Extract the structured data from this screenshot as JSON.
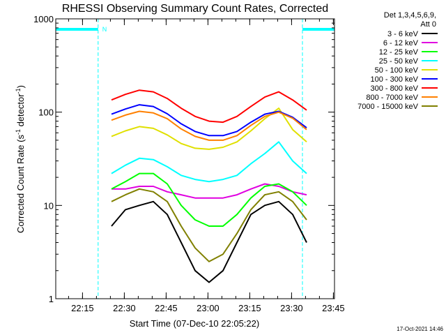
{
  "chart_data": {
    "type": "line",
    "title": "RHESSI Observing Summary Count Rates, Corrected",
    "xlabel": "Start Time (07-Dec-10 22:05:22)",
    "ylabel_main": "Corrected Count Rate (s",
    "ylabel_sup1": "-1",
    "ylabel_mid": " detector",
    "ylabel_sup2": "-1",
    "ylabel_end": ")",
    "yscale": "log",
    "ylim": [
      1,
      1000
    ],
    "y_ticks": [
      {
        "value": 1,
        "label": "1"
      },
      {
        "value": 10,
        "label": "10"
      },
      {
        "value": 100,
        "label": "100"
      },
      {
        "value": 1000,
        "label": "1000"
      }
    ],
    "xlim_minutes": [
      0,
      100
    ],
    "x_ticks": [
      {
        "label": "22:15",
        "minutes": 9.6
      },
      {
        "label": "22:30",
        "minutes": 24.6
      },
      {
        "label": "22:45",
        "minutes": 39.6
      },
      {
        "label": "23:00",
        "minutes": 54.6
      },
      {
        "label": "23:15",
        "minutes": 69.6
      },
      {
        "label": "23:30",
        "minutes": 84.6
      },
      {
        "label": "23:45",
        "minutes": 99.6
      }
    ],
    "legend_header": [
      "Det 1,3,4,5,6,9,",
      "Att 0"
    ],
    "series": [
      {
        "name": "3 - 6 keV",
        "color": "#000000",
        "x": [
          0,
          5,
          10,
          15,
          20,
          25,
          30,
          35,
          40,
          45,
          50,
          55,
          60,
          65,
          70,
          75,
          80,
          85,
          90,
          95,
          100
        ],
        "y": [
          null,
          null,
          null,
          null,
          6,
          9,
          10,
          11,
          8,
          4,
          2,
          1.5,
          2,
          4,
          8,
          10,
          11,
          8,
          4,
          null,
          null
        ]
      },
      {
        "name": "6 - 12 keV",
        "color": "#e000e0",
        "x": [
          0,
          5,
          10,
          15,
          20,
          25,
          30,
          35,
          40,
          45,
          50,
          55,
          60,
          65,
          70,
          75,
          80,
          85,
          90,
          95,
          100
        ],
        "y": [
          null,
          null,
          null,
          null,
          15,
          15,
          16,
          16,
          14,
          13,
          12,
          12,
          12,
          13,
          15,
          17,
          16,
          14,
          13,
          null,
          null
        ]
      },
      {
        "name": "12 - 25 keV",
        "color": "#00ff00",
        "x": [
          0,
          5,
          10,
          15,
          20,
          25,
          30,
          35,
          40,
          45,
          50,
          55,
          60,
          65,
          70,
          75,
          80,
          85,
          90,
          95,
          100
        ],
        "y": [
          null,
          null,
          null,
          null,
          15,
          18,
          22,
          22,
          17,
          10,
          7,
          6,
          6,
          8,
          12,
          16,
          17,
          14,
          10,
          null,
          null
        ]
      },
      {
        "name": "25 - 50 keV",
        "color": "#00ffff",
        "x": [
          0,
          5,
          10,
          15,
          20,
          25,
          30,
          35,
          40,
          45,
          50,
          55,
          60,
          65,
          70,
          75,
          80,
          85,
          90,
          95,
          100
        ],
        "y": [
          null,
          null,
          null,
          null,
          22,
          27,
          32,
          31,
          26,
          21,
          19,
          18,
          19,
          21,
          28,
          36,
          48,
          30,
          22,
          null,
          null
        ]
      },
      {
        "name": "50 - 100 keV",
        "color": "#e0e000",
        "x": [
          0,
          5,
          10,
          15,
          20,
          25,
          30,
          35,
          40,
          45,
          50,
          55,
          60,
          65,
          70,
          75,
          80,
          85,
          90,
          95,
          100
        ],
        "y": [
          null,
          null,
          null,
          null,
          55,
          63,
          70,
          67,
          57,
          46,
          41,
          40,
          42,
          48,
          63,
          85,
          110,
          65,
          48,
          null,
          null
        ]
      },
      {
        "name": "100 - 300 keV",
        "color": "#0000ff",
        "x": [
          0,
          5,
          10,
          15,
          20,
          25,
          30,
          35,
          40,
          45,
          50,
          55,
          60,
          65,
          70,
          75,
          80,
          85,
          90,
          95,
          100
        ],
        "y": [
          null,
          null,
          null,
          null,
          95,
          108,
          120,
          115,
          96,
          75,
          62,
          56,
          56,
          62,
          78,
          95,
          102,
          88,
          68,
          null,
          null
        ]
      },
      {
        "name": "300 - 800 keV",
        "color": "#ff0000",
        "x": [
          0,
          5,
          10,
          15,
          20,
          25,
          30,
          35,
          40,
          45,
          50,
          55,
          60,
          65,
          70,
          75,
          80,
          85,
          90,
          95,
          100
        ],
        "y": [
          null,
          null,
          null,
          null,
          135,
          155,
          172,
          165,
          140,
          110,
          90,
          80,
          78,
          90,
          115,
          145,
          165,
          135,
          105,
          null,
          null
        ]
      },
      {
        "name": "800 - 7000 keV",
        "color": "#ff8000",
        "x": [
          0,
          5,
          10,
          15,
          20,
          25,
          30,
          35,
          40,
          45,
          50,
          55,
          60,
          65,
          70,
          75,
          80,
          85,
          90,
          95,
          100
        ],
        "y": [
          null,
          null,
          null,
          null,
          82,
          93,
          102,
          98,
          85,
          66,
          55,
          50,
          50,
          56,
          72,
          90,
          100,
          86,
          65,
          null,
          null
        ]
      },
      {
        "name": "7000 - 15000 keV",
        "color": "#808000",
        "x": [
          0,
          5,
          10,
          15,
          20,
          25,
          30,
          35,
          40,
          45,
          50,
          55,
          60,
          65,
          70,
          75,
          80,
          85,
          90,
          95,
          100
        ],
        "y": [
          null,
          null,
          null,
          null,
          11,
          13,
          15,
          14,
          11,
          6,
          3.5,
          2.5,
          3,
          5,
          9,
          13,
          14,
          11,
          7,
          null,
          null
        ]
      }
    ],
    "annotations": {
      "night_label": "N",
      "night_bands_minutes": [
        [
          0,
          15.2
        ],
        [
          88.5,
          100
        ]
      ],
      "saa_markers_minutes": [
        15.2,
        88.5
      ],
      "night_band_color": "#00ffff"
    },
    "footer_stamp": "17-Oct-2021 14:46",
    "grid": false,
    "legend_position": "right"
  }
}
